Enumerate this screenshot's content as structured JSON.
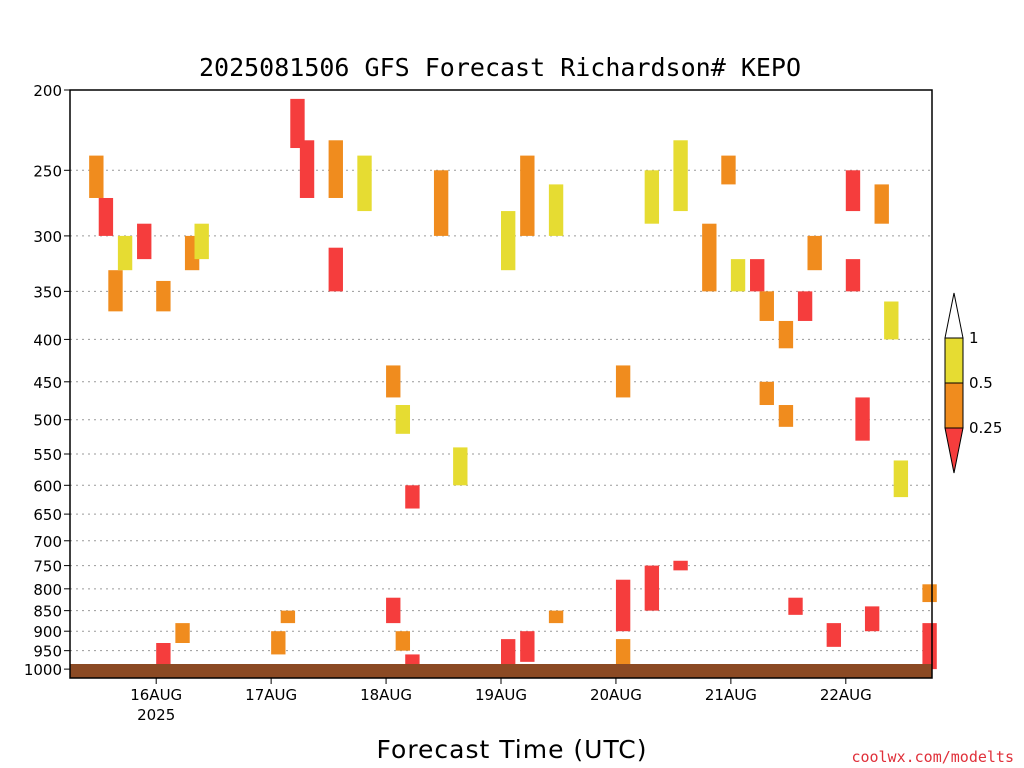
{
  "chart_data": {
    "type": "heatmap",
    "title": "2025081506 GFS Forecast Richardson# KEPO",
    "xlabel": "Forecast Time (UTC)",
    "ylabel": "",
    "credit": "coolwx.com/modelts",
    "y_axis": {
      "scale": "pressure",
      "range_hpa": [
        1025,
        200
      ],
      "ticks": [
        "200",
        "250",
        "300",
        "350",
        "400",
        "450",
        "500",
        "550",
        "600",
        "650",
        "700",
        "750",
        "800",
        "850",
        "900",
        "950",
        "1000"
      ]
    },
    "x_axis": {
      "range": [
        "2025-08-15T06",
        "2025-08-22T18"
      ],
      "ticks": [
        {
          "t": "2025-08-16T00",
          "label": "16AUG",
          "sublabel": "2025"
        },
        {
          "t": "2025-08-17T00",
          "label": "17AUG",
          "sublabel": ""
        },
        {
          "t": "2025-08-18T00",
          "label": "18AUG",
          "sublabel": ""
        },
        {
          "t": "2025-08-19T00",
          "label": "19AUG",
          "sublabel": ""
        },
        {
          "t": "2025-08-20T00",
          "label": "20AUG",
          "sublabel": ""
        },
        {
          "t": "2025-08-21T00",
          "label": "21AUG",
          "sublabel": ""
        },
        {
          "t": "2025-08-22T00",
          "label": "22AUG",
          "sublabel": ""
        }
      ]
    },
    "grid": "dotted horizontal lines at pressure levels",
    "legend": {
      "placement": "right",
      "bins": [
        {
          "range": "< 0.25",
          "color": "#f53d3d"
        },
        {
          "range": "0.25 - 0.5",
          "color": "#f08c1e"
        },
        {
          "range": "0.5 - 1",
          "color": "#e6dc32"
        },
        {
          "range": "> 1",
          "color": "#ffffff"
        }
      ],
      "labels": [
        "1",
        "0.5",
        "0.25"
      ]
    },
    "colors": {
      "red": "#f53d3d",
      "orange": "#f08c1e",
      "yellow": "#e6dc32",
      "ground": "#8b4a24"
    },
    "cells": [
      {
        "t": "2025-08-15T10",
        "p0": 240,
        "p1": 270,
        "c": "orange"
      },
      {
        "t": "2025-08-15T12",
        "p0": 270,
        "p1": 300,
        "c": "red"
      },
      {
        "t": "2025-08-15T14",
        "p0": 330,
        "p1": 370,
        "c": "orange"
      },
      {
        "t": "2025-08-15T16",
        "p0": 300,
        "p1": 330,
        "c": "yellow"
      },
      {
        "t": "2025-08-15T20",
        "p0": 290,
        "p1": 320,
        "c": "red"
      },
      {
        "t": "2025-08-16T00",
        "p0": 340,
        "p1": 370,
        "c": "orange"
      },
      {
        "t": "2025-08-16T06",
        "p0": 300,
        "p1": 330,
        "c": "orange"
      },
      {
        "t": "2025-08-16T08",
        "p0": 290,
        "p1": 320,
        "c": "yellow"
      },
      {
        "t": "2025-08-17T04",
        "p0": 205,
        "p1": 235,
        "c": "red"
      },
      {
        "t": "2025-08-17T06",
        "p0": 230,
        "p1": 270,
        "c": "red"
      },
      {
        "t": "2025-08-17T12",
        "p0": 230,
        "p1": 270,
        "c": "orange"
      },
      {
        "t": "2025-08-17T12",
        "p0": 310,
        "p1": 350,
        "c": "red"
      },
      {
        "t": "2025-08-17T18",
        "p0": 240,
        "p1": 280,
        "c": "yellow"
      },
      {
        "t": "2025-08-18T00",
        "p0": 430,
        "p1": 470,
        "c": "orange"
      },
      {
        "t": "2025-08-18T02",
        "p0": 480,
        "p1": 520,
        "c": "yellow"
      },
      {
        "t": "2025-08-18T04",
        "p0": 600,
        "p1": 640,
        "c": "red"
      },
      {
        "t": "2025-08-18T10",
        "p0": 250,
        "p1": 300,
        "c": "orange"
      },
      {
        "t": "2025-08-18T14",
        "p0": 540,
        "p1": 600,
        "c": "yellow"
      },
      {
        "t": "2025-08-19T00",
        "p0": 280,
        "p1": 330,
        "c": "yellow"
      },
      {
        "t": "2025-08-19T04",
        "p0": 240,
        "p1": 300,
        "c": "orange"
      },
      {
        "t": "2025-08-19T10",
        "p0": 260,
        "p1": 300,
        "c": "yellow"
      },
      {
        "t": "2025-08-20T00",
        "p0": 430,
        "p1": 470,
        "c": "orange"
      },
      {
        "t": "2025-08-20T06",
        "p0": 250,
        "p1": 290,
        "c": "yellow"
      },
      {
        "t": "2025-08-20T12",
        "p0": 230,
        "p1": 280,
        "c": "yellow"
      },
      {
        "t": "2025-08-20T18",
        "p0": 290,
        "p1": 350,
        "c": "orange"
      },
      {
        "t": "2025-08-20T22",
        "p0": 240,
        "p1": 260,
        "c": "orange"
      },
      {
        "t": "2025-08-21T00",
        "p0": 320,
        "p1": 350,
        "c": "yellow"
      },
      {
        "t": "2025-08-21T04",
        "p0": 320,
        "p1": 350,
        "c": "red"
      },
      {
        "t": "2025-08-21T06",
        "p0": 350,
        "p1": 380,
        "c": "orange"
      },
      {
        "t": "2025-08-21T06",
        "p0": 450,
        "p1": 480,
        "c": "orange"
      },
      {
        "t": "2025-08-21T10",
        "p0": 380,
        "p1": 410,
        "c": "orange"
      },
      {
        "t": "2025-08-21T10",
        "p0": 480,
        "p1": 510,
        "c": "orange"
      },
      {
        "t": "2025-08-21T14",
        "p0": 350,
        "p1": 380,
        "c": "red"
      },
      {
        "t": "2025-08-21T16",
        "p0": 300,
        "p1": 330,
        "c": "orange"
      },
      {
        "t": "2025-08-22T00",
        "p0": 250,
        "p1": 280,
        "c": "red"
      },
      {
        "t": "2025-08-22T00",
        "p0": 320,
        "p1": 350,
        "c": "red"
      },
      {
        "t": "2025-08-22T02",
        "p0": 470,
        "p1": 530,
        "c": "red"
      },
      {
        "t": "2025-08-22T06",
        "p0": 260,
        "p1": 290,
        "c": "orange"
      },
      {
        "t": "2025-08-22T08",
        "p0": 360,
        "p1": 400,
        "c": "yellow"
      },
      {
        "t": "2025-08-22T10",
        "p0": 560,
        "p1": 620,
        "c": "yellow"
      },
      {
        "t": "2025-08-16T00",
        "p0": 930,
        "p1": 990,
        "c": "red"
      },
      {
        "t": "2025-08-16T04",
        "p0": 880,
        "p1": 930,
        "c": "orange"
      },
      {
        "t": "2025-08-17T00",
        "p0": 900,
        "p1": 960,
        "c": "orange"
      },
      {
        "t": "2025-08-17T02",
        "p0": 850,
        "p1": 880,
        "c": "orange"
      },
      {
        "t": "2025-08-18T00",
        "p0": 820,
        "p1": 880,
        "c": "red"
      },
      {
        "t": "2025-08-18T02",
        "p0": 900,
        "p1": 950,
        "c": "orange"
      },
      {
        "t": "2025-08-18T04",
        "p0": 960,
        "p1": 1000,
        "c": "red"
      },
      {
        "t": "2025-08-19T00",
        "p0": 920,
        "p1": 990,
        "c": "red"
      },
      {
        "t": "2025-08-19T04",
        "p0": 900,
        "p1": 980,
        "c": "red"
      },
      {
        "t": "2025-08-19T10",
        "p0": 850,
        "p1": 880,
        "c": "orange"
      },
      {
        "t": "2025-08-20T00",
        "p0": 780,
        "p1": 900,
        "c": "red"
      },
      {
        "t": "2025-08-20T06",
        "p0": 750,
        "p1": 850,
        "c": "red"
      },
      {
        "t": "2025-08-20T00",
        "p0": 920,
        "p1": 990,
        "c": "orange"
      },
      {
        "t": "2025-08-20T12",
        "p0": 740,
        "p1": 760,
        "c": "red"
      },
      {
        "t": "2025-08-21T12",
        "p0": 820,
        "p1": 860,
        "c": "red"
      },
      {
        "t": "2025-08-21T20",
        "p0": 880,
        "p1": 940,
        "c": "red"
      },
      {
        "t": "2025-08-22T04",
        "p0": 840,
        "p1": 900,
        "c": "red"
      },
      {
        "t": "2025-08-22T16",
        "p0": 880,
        "p1": 1000,
        "c": "red"
      },
      {
        "t": "2025-08-22T16",
        "p0": 790,
        "p1": 830,
        "c": "orange"
      }
    ]
  }
}
